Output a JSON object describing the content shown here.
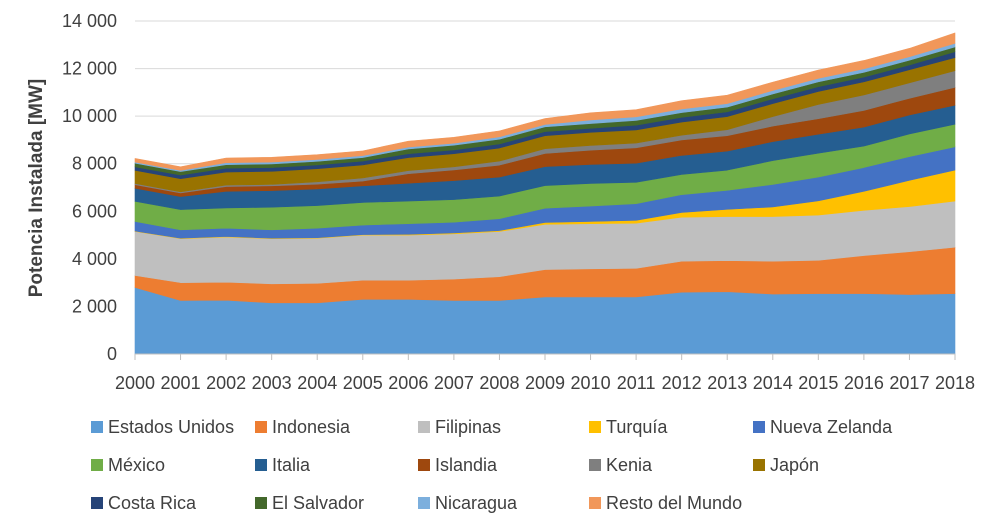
{
  "chart_data": {
    "type": "area",
    "stacked": true,
    "title": "",
    "xlabel": "",
    "ylabel": "Potencia Instalada [MW]",
    "ylim": [
      0,
      14000
    ],
    "yticks": [
      0,
      2000,
      4000,
      6000,
      8000,
      10000,
      12000,
      14000
    ],
    "ytick_labels": [
      "0",
      "2 000",
      "4 000",
      "6 000",
      "8 000",
      "10 000",
      "12 000",
      "14 000"
    ],
    "x": [
      "2000",
      "2001",
      "2002",
      "2003",
      "2004",
      "2005",
      "2006",
      "2007",
      "2008",
      "2009",
      "2010",
      "2011",
      "2012",
      "2013",
      "2014",
      "2015",
      "2016",
      "2017",
      "2018"
    ],
    "grid": true,
    "legend_position": "bottom",
    "series": [
      {
        "name": "Estados Unidos",
        "color": "#5B9BD5",
        "values": [
          2800,
          2250,
          2260,
          2150,
          2150,
          2300,
          2300,
          2250,
          2250,
          2400,
          2400,
          2400,
          2600,
          2620,
          2520,
          2540,
          2540,
          2500,
          2540
        ]
      },
      {
        "name": "Indonesia",
        "color": "#ED7D31",
        "values": [
          500,
          750,
          760,
          800,
          820,
          800,
          800,
          900,
          1000,
          1150,
          1180,
          1200,
          1300,
          1310,
          1380,
          1400,
          1600,
          1800,
          1950
        ]
      },
      {
        "name": "Filipinas",
        "color": "#BFBFBF",
        "values": [
          1850,
          1850,
          1900,
          1900,
          1900,
          1900,
          1900,
          1900,
          1900,
          1900,
          1900,
          1900,
          1850,
          1850,
          1880,
          1900,
          1900,
          1900,
          1940
        ]
      },
      {
        "name": "Turquía",
        "color": "#FFC000",
        "values": [
          20,
          20,
          20,
          20,
          20,
          20,
          30,
          40,
          40,
          80,
          90,
          120,
          200,
          300,
          400,
          600,
          800,
          1100,
          1300
        ]
      },
      {
        "name": "Nueva Zelanda",
        "color": "#4472C4",
        "values": [
          400,
          350,
          350,
          350,
          400,
          400,
          450,
          450,
          500,
          600,
          650,
          700,
          750,
          800,
          950,
          1000,
          1000,
          1000,
          980
        ]
      },
      {
        "name": "México",
        "color": "#70AD47",
        "values": [
          850,
          850,
          850,
          950,
          950,
          950,
          950,
          950,
          950,
          950,
          950,
          900,
          850,
          850,
          1000,
          1000,
          900,
          950,
          950
        ]
      },
      {
        "name": "Italia",
        "color": "#255E91",
        "values": [
          550,
          550,
          700,
          700,
          700,
          700,
          750,
          800,
          800,
          800,
          800,
          800,
          800,
          800,
          800,
          800,
          800,
          800,
          800
        ]
      },
      {
        "name": "Islandia",
        "color": "#9E480E",
        "values": [
          150,
          150,
          200,
          200,
          200,
          200,
          400,
          450,
          500,
          550,
          600,
          650,
          650,
          650,
          650,
          650,
          700,
          700,
          750
        ]
      },
      {
        "name": "Kenia",
        "color": "#7F7F7F",
        "values": [
          50,
          50,
          60,
          60,
          100,
          130,
          130,
          130,
          170,
          200,
          200,
          200,
          200,
          250,
          400,
          600,
          650,
          650,
          700
        ]
      },
      {
        "name": "Japón",
        "color": "#997300",
        "values": [
          550,
          550,
          550,
          550,
          550,
          550,
          550,
          550,
          550,
          550,
          550,
          550,
          550,
          550,
          550,
          550,
          550,
          550,
          550
        ]
      },
      {
        "name": "Costa Rica",
        "color": "#264478",
        "values": [
          150,
          150,
          160,
          160,
          160,
          160,
          160,
          160,
          170,
          170,
          170,
          200,
          200,
          200,
          200,
          200,
          200,
          200,
          250
        ]
      },
      {
        "name": "El Salvador",
        "color": "#43682B",
        "values": [
          150,
          150,
          150,
          150,
          150,
          150,
          200,
          200,
          200,
          200,
          200,
          200,
          200,
          200,
          200,
          200,
          200,
          200,
          200
        ]
      },
      {
        "name": "Nicaragua",
        "color": "#7CAFDD",
        "values": [
          50,
          50,
          80,
          80,
          80,
          80,
          80,
          80,
          100,
          100,
          150,
          150,
          150,
          150,
          150,
          150,
          150,
          150,
          150
        ]
      },
      {
        "name": "Resto del Mundo",
        "color": "#F1975A",
        "values": [
          150,
          150,
          200,
          200,
          200,
          200,
          250,
          250,
          250,
          250,
          300,
          300,
          350,
          350,
          350,
          350,
          350,
          350,
          440
        ]
      }
    ]
  }
}
